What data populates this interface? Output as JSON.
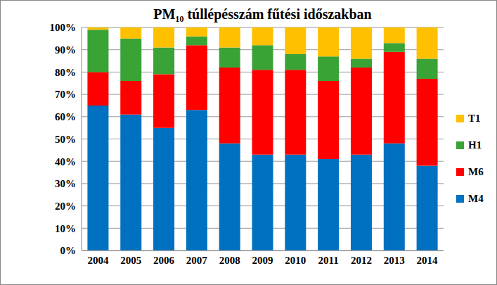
{
  "chart_data": {
    "type": "bar",
    "title": "PM₁₀ túllépésszám fűtési időszakban",
    "categories": [
      "2004",
      "2005",
      "2006",
      "2007",
      "2008",
      "2009",
      "2010",
      "2011",
      "2012",
      "2013",
      "2014"
    ],
    "series": [
      {
        "name": "M4",
        "color": "#0070C0",
        "values": [
          65,
          61,
          55,
          63,
          48,
          43,
          43,
          41,
          43,
          48,
          38
        ]
      },
      {
        "name": "M6",
        "color": "#FF0000",
        "values": [
          15,
          15,
          24,
          29,
          34,
          38,
          38,
          35,
          39,
          41,
          39
        ]
      },
      {
        "name": "H1",
        "color": "#3AA335",
        "values": [
          19,
          19,
          12,
          4,
          9,
          11,
          7,
          11,
          4,
          4,
          9
        ]
      },
      {
        "name": "T1",
        "color": "#FFC000",
        "values": [
          1,
          5,
          9,
          4,
          9,
          8,
          12,
          13,
          14,
          7,
          14
        ]
      }
    ],
    "stacked": true,
    "ylim": [
      0,
      100
    ],
    "yticks": [
      {
        "value": 0,
        "label": "0%"
      },
      {
        "value": 10,
        "label": "10%"
      },
      {
        "value": 20,
        "label": "20%"
      },
      {
        "value": 30,
        "label": "30%"
      },
      {
        "value": 40,
        "label": "40%"
      },
      {
        "value": 50,
        "label": "50%"
      },
      {
        "value": 60,
        "label": "60%"
      },
      {
        "value": 70,
        "label": "70%"
      },
      {
        "value": 80,
        "label": "80%"
      },
      {
        "value": 90,
        "label": "90%"
      },
      {
        "value": 100,
        "label": "100%"
      }
    ],
    "grid": true,
    "legend": "right"
  }
}
